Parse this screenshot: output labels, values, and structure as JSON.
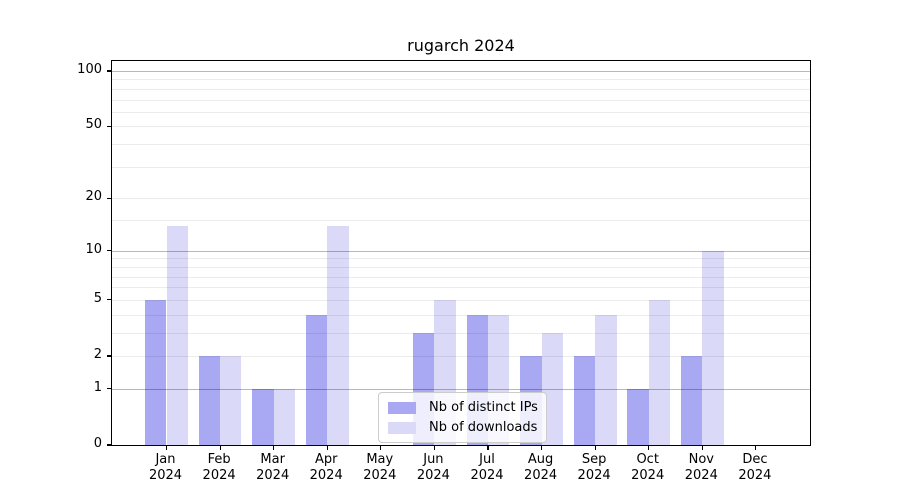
{
  "chart_data": {
    "type": "bar",
    "title": "rugarch 2024",
    "categories": [
      "Jan\n2024",
      "Feb\n2024",
      "Mar\n2024",
      "Apr\n2024",
      "May\n2024",
      "Jun\n2024",
      "Jul\n2024",
      "Aug\n2024",
      "Sep\n2024",
      "Oct\n2024",
      "Nov\n2024",
      "Dec\n2024"
    ],
    "series": [
      {
        "name": "Nb of distinct IPs",
        "color": "#a8a8f3",
        "values": [
          5,
          2,
          1,
          4,
          0,
          3,
          4,
          2,
          2,
          1,
          2,
          0
        ]
      },
      {
        "name": "Nb of downloads",
        "color": "#dadaf8",
        "values": [
          14,
          2,
          1,
          14,
          0,
          5,
          4,
          3,
          4,
          5,
          10,
          0
        ]
      }
    ],
    "yscale": "log1p",
    "ylim": [
      0,
      100
    ],
    "yticks": [
      0,
      1,
      2,
      5,
      10,
      20,
      50,
      100
    ],
    "gridlines_major": [
      1,
      10,
      100
    ],
    "gridlines_minor": [
      2,
      3,
      4,
      5,
      6,
      7,
      8,
      9,
      15,
      20,
      30,
      40,
      50,
      60,
      70,
      80,
      90
    ],
    "legend_position": "lower center",
    "xlabel": "",
    "ylabel": ""
  }
}
